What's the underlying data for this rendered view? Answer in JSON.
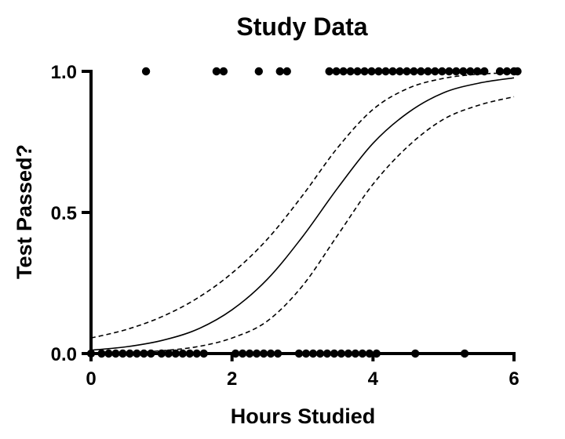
{
  "chart_data": {
    "type": "scatter",
    "title": "Study Data",
    "xlabel": "Hours Studied",
    "ylabel": "Test Passed?",
    "xlim": [
      0,
      6
    ],
    "ylim": [
      0,
      1
    ],
    "x_ticks": [
      "0",
      "2",
      "4",
      "6"
    ],
    "x_tick_values": [
      0,
      2,
      4,
      6
    ],
    "y_ticks": [
      "0.0",
      "0.5",
      "1.0"
    ],
    "y_tick_values": [
      0,
      0.5,
      1
    ],
    "grid": false,
    "legend": "none",
    "series": [
      {
        "kind": "points",
        "y": 1,
        "x": [
          0.78,
          1.78,
          1.88,
          2.38,
          2.68,
          2.78,
          3.38,
          3.48,
          3.58,
          3.68,
          3.78,
          3.88,
          3.98,
          4.08,
          4.18,
          4.28,
          4.38,
          4.48,
          4.58,
          4.68,
          4.78,
          4.88,
          4.98,
          5.08,
          5.18,
          5.28,
          5.38,
          5.48,
          5.58,
          5.8,
          5.9,
          6.0,
          6.05
        ]
      },
      {
        "kind": "points",
        "y": 0,
        "x": [
          0,
          0.15,
          0.25,
          0.35,
          0.45,
          0.55,
          0.65,
          0.75,
          0.85,
          1.0,
          1.1,
          1.2,
          1.3,
          1.4,
          1.5,
          1.6,
          2.05,
          2.15,
          2.25,
          2.35,
          2.45,
          2.55,
          2.65,
          2.95,
          3.05,
          3.15,
          3.25,
          3.35,
          3.45,
          3.55,
          3.65,
          3.75,
          3.85,
          3.95,
          4.05,
          4.6,
          5.3
        ]
      },
      {
        "kind": "fit",
        "style": "solid",
        "x": [
          0,
          0.5,
          1,
          1.5,
          2,
          2.5,
          3,
          3.5,
          4,
          4.5,
          5,
          5.5,
          6
        ],
        "y": [
          0.012,
          0.024,
          0.046,
          0.085,
          0.155,
          0.263,
          0.414,
          0.587,
          0.745,
          0.854,
          0.924,
          0.958,
          0.977
        ]
      },
      {
        "kind": "confidence-band-upper",
        "style": "dashed",
        "x": [
          0,
          0.5,
          1,
          1.5,
          2,
          2.5,
          3,
          3.5,
          4,
          4.5,
          5,
          5.5,
          6
        ],
        "y": [
          0.055,
          0.085,
          0.13,
          0.195,
          0.285,
          0.405,
          0.56,
          0.73,
          0.865,
          0.94,
          0.975,
          0.99,
          0.995
        ]
      },
      {
        "kind": "confidence-band-lower",
        "style": "dashed",
        "x": [
          0,
          0.5,
          1,
          1.5,
          2,
          2.5,
          3,
          3.5,
          4,
          4.5,
          5,
          5.5,
          6
        ],
        "y": [
          0.0,
          0.003,
          0.01,
          0.024,
          0.055,
          0.115,
          0.24,
          0.42,
          0.6,
          0.735,
          0.83,
          0.88,
          0.91
        ]
      }
    ]
  }
}
